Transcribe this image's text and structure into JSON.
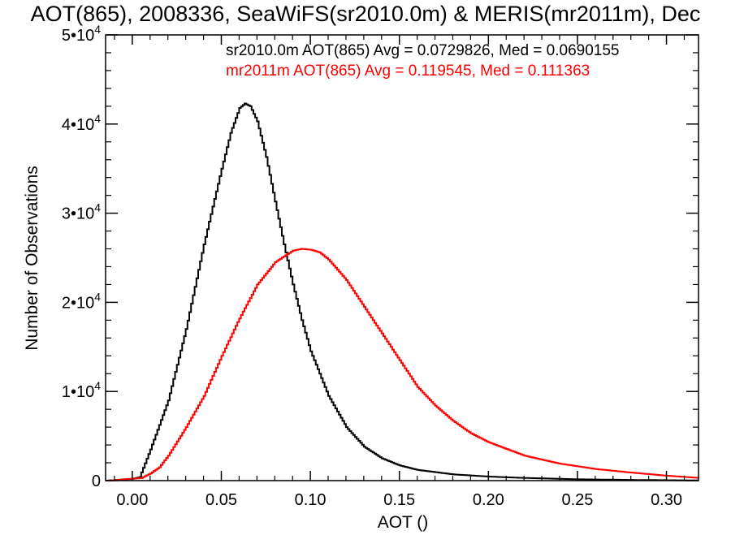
{
  "chart_data": {
    "type": "line",
    "step": true,
    "title": "AOT(865), 2008336, SeaWiFS(sr2010.0m) & MERIS(mr2011m), Dec",
    "xlabel": "AOT ()",
    "ylabel": "Number of Observations",
    "xlim": [
      -0.015,
      0.318
    ],
    "ylim": [
      0,
      50000
    ],
    "x_ticks": [
      {
        "value": 0.0,
        "label": "0.00"
      },
      {
        "value": 0.05,
        "label": "0.05"
      },
      {
        "value": 0.1,
        "label": "0.10"
      },
      {
        "value": 0.15,
        "label": "0.15"
      },
      {
        "value": 0.2,
        "label": "0.20"
      },
      {
        "value": 0.25,
        "label": "0.25"
      },
      {
        "value": 0.3,
        "label": "0.30"
      }
    ],
    "y_ticks": [
      {
        "value": 0,
        "mant": "0",
        "exp": ""
      },
      {
        "value": 10000,
        "mant": "1•10",
        "exp": "4"
      },
      {
        "value": 20000,
        "mant": "2•10",
        "exp": "4"
      },
      {
        "value": 30000,
        "mant": "3•10",
        "exp": "4"
      },
      {
        "value": 40000,
        "mant": "4•10",
        "exp": "4"
      },
      {
        "value": 50000,
        "mant": "5•10",
        "exp": "4"
      }
    ],
    "legend": [
      {
        "text": "sr2010.0m AOT(865) Avg = 0.0729826, Med = 0.0690155",
        "color": "#000000"
      },
      {
        "text": "mr2011m AOT(865) Avg = 0.119545, Med = 0.111363",
        "color": "#ff0000"
      }
    ],
    "series": [
      {
        "color": "#000000",
        "x": [
          -0.014,
          0.0,
          0.004,
          0.01,
          0.02,
          0.03,
          0.04,
          0.05,
          0.055,
          0.06,
          0.063,
          0.066,
          0.07,
          0.075,
          0.08,
          0.085,
          0.09,
          0.095,
          0.1,
          0.11,
          0.12,
          0.13,
          0.14,
          0.15,
          0.16,
          0.18,
          0.2,
          0.22,
          0.25,
          0.28,
          0.318
        ],
        "y": [
          0,
          200,
          400,
          3500,
          9000,
          17000,
          26500,
          35000,
          39000,
          41800,
          42300,
          42000,
          40300,
          36300,
          31300,
          26500,
          22000,
          18000,
          14500,
          9500,
          6000,
          3800,
          2500,
          1700,
          1200,
          700,
          450,
          300,
          150,
          80,
          20
        ]
      },
      {
        "color": "#ff0000",
        "x": [
          -0.014,
          0.005,
          0.01,
          0.015,
          0.02,
          0.03,
          0.04,
          0.05,
          0.06,
          0.07,
          0.08,
          0.09,
          0.095,
          0.1,
          0.105,
          0.11,
          0.12,
          0.13,
          0.14,
          0.15,
          0.16,
          0.17,
          0.18,
          0.19,
          0.2,
          0.22,
          0.24,
          0.26,
          0.28,
          0.3,
          0.318
        ],
        "y": [
          0,
          300,
          800,
          1500,
          2800,
          6000,
          9500,
          14000,
          18200,
          22000,
          24500,
          25800,
          26000,
          25900,
          25600,
          24800,
          22500,
          19500,
          16500,
          13500,
          10500,
          8400,
          6700,
          5300,
          4300,
          2800,
          1900,
          1300,
          900,
          550,
          300
        ]
      }
    ]
  }
}
